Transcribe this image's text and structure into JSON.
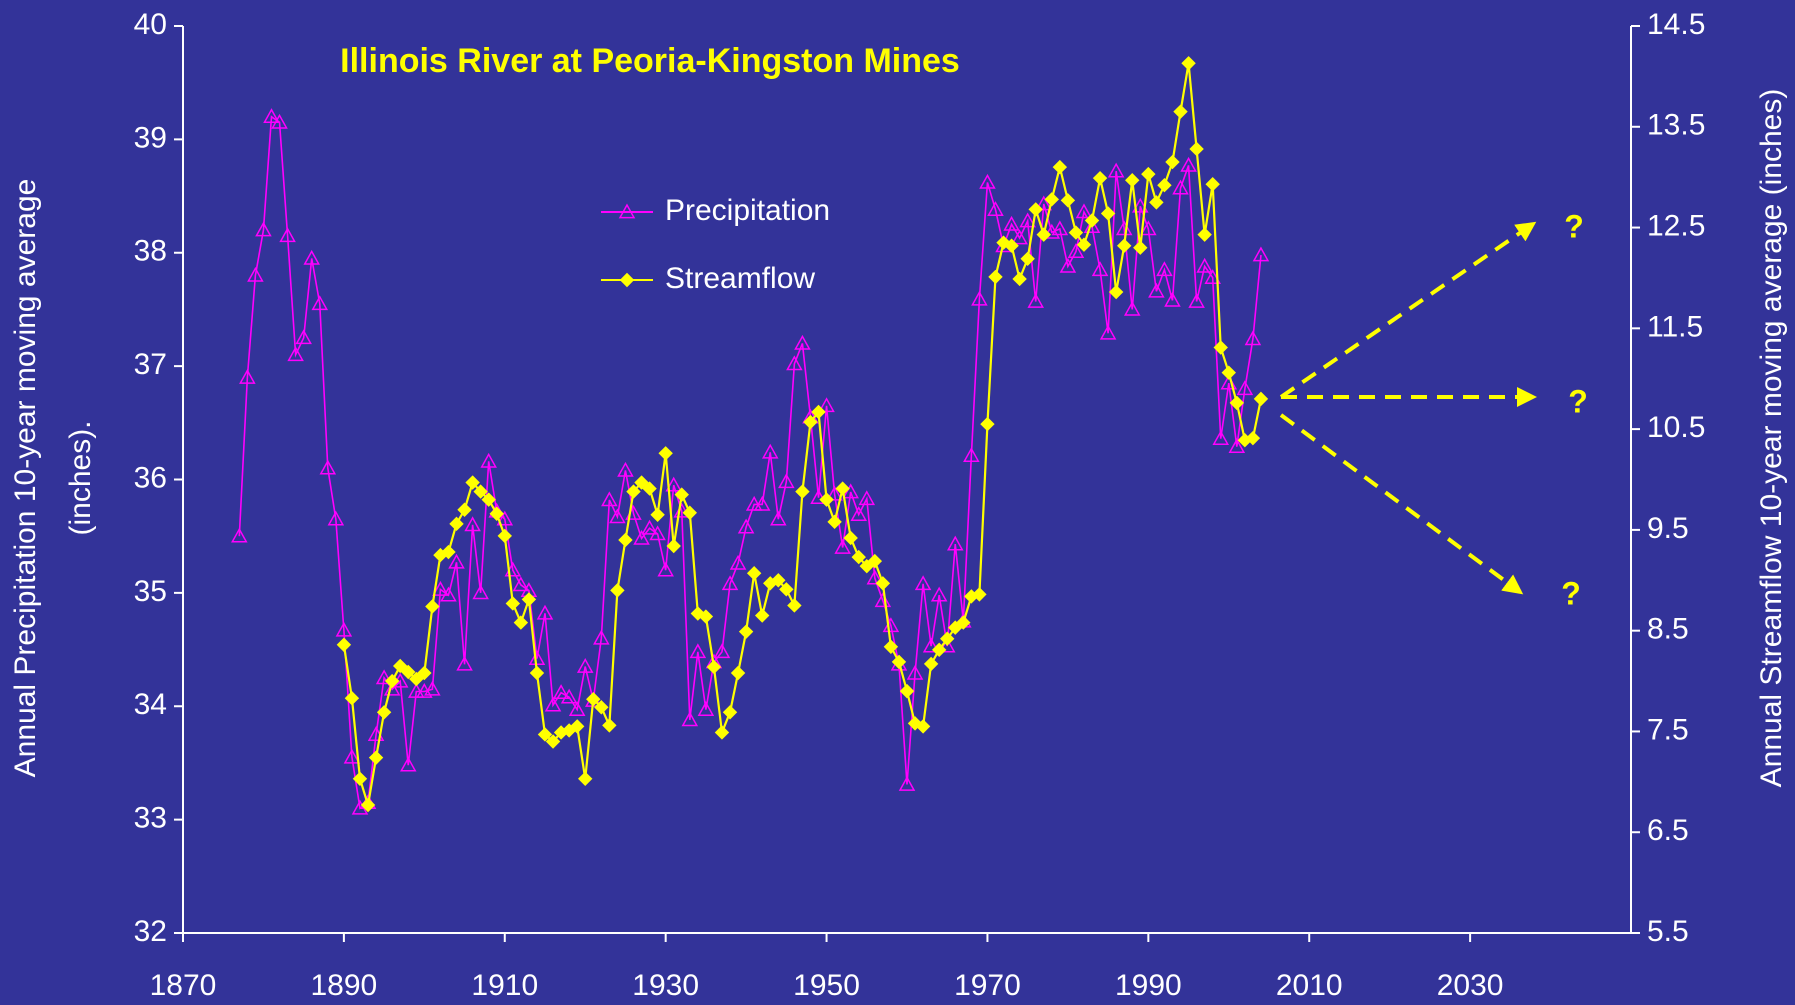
{
  "chart_data": {
    "type": "line",
    "title": "Illinois River at Peoria-Kingston Mines",
    "ylabel": [
      "Annual Precipitation 10-year moving average",
      "(inches)."
    ],
    "y2label": "Annual Streamflow 10-year moving average (inches)",
    "xlim": [
      1870,
      2050
    ],
    "xticks": [
      1870,
      1890,
      1910,
      1930,
      1950,
      1970,
      1990,
      2010,
      2030
    ],
    "ylim": [
      32,
      40
    ],
    "yticks": [
      32,
      33,
      34,
      35,
      36,
      37,
      38,
      39,
      40
    ],
    "y2lim": [
      5.5,
      14.5
    ],
    "y2ticks": [
      5.5,
      6.5,
      7.5,
      8.5,
      9.5,
      10.5,
      11.5,
      12.5,
      13.5,
      14.5
    ],
    "grid": false,
    "legend": "upper center",
    "x": [
      1877,
      1878,
      1879,
      1880,
      1881,
      1882,
      1883,
      1884,
      1885,
      1886,
      1887,
      1888,
      1889,
      1890,
      1891,
      1892,
      1893,
      1894,
      1895,
      1896,
      1897,
      1898,
      1899,
      1900,
      1901,
      1902,
      1903,
      1904,
      1905,
      1906,
      1907,
      1908,
      1909,
      1910,
      1911,
      1912,
      1913,
      1914,
      1915,
      1916,
      1917,
      1918,
      1919,
      1920,
      1921,
      1922,
      1923,
      1924,
      1925,
      1926,
      1927,
      1928,
      1929,
      1930,
      1931,
      1932,
      1933,
      1934,
      1935,
      1936,
      1937,
      1938,
      1939,
      1940,
      1941,
      1942,
      1943,
      1944,
      1945,
      1946,
      1947,
      1948,
      1949,
      1950,
      1951,
      1952,
      1953,
      1954,
      1955,
      1956,
      1957,
      1958,
      1959,
      1960,
      1961,
      1962,
      1963,
      1964,
      1965,
      1966,
      1967,
      1968,
      1969,
      1970,
      1971,
      1972,
      1973,
      1974,
      1975,
      1976,
      1977,
      1978,
      1979,
      1980,
      1981,
      1982,
      1983,
      1984,
      1985,
      1986,
      1987,
      1988,
      1989,
      1990,
      1991,
      1992,
      1993,
      1994,
      1995,
      1996,
      1997,
      1998,
      1999,
      2000,
      2001,
      2002,
      2003,
      2004
    ],
    "series": [
      {
        "name": "Precipitation",
        "color": "#ff00ff",
        "marker": "triangle",
        "values": [
          35.5,
          36.9,
          37.8,
          38.2,
          39.2,
          39.15,
          38.15,
          37.1,
          37.25,
          37.95,
          37.55,
          36.1,
          35.65,
          34.67,
          33.55,
          33.1,
          33.15,
          33.75,
          34.25,
          34.15,
          34.22,
          33.48,
          34.13,
          34.13,
          34.15,
          35.03,
          34.98,
          35.27,
          34.37,
          35.6,
          35.0,
          36.16,
          35.72,
          35.65,
          35.2,
          35.07,
          35.02,
          34.42,
          34.82,
          34.01,
          34.12,
          34.08,
          33.97,
          34.35,
          34.05,
          34.6,
          35.82,
          35.67,
          36.08,
          35.7,
          35.48,
          35.57,
          35.52,
          35.2,
          35.95,
          35.72,
          33.88,
          34.48,
          33.97,
          34.39,
          34.48,
          35.08,
          35.26,
          35.58,
          35.78,
          35.78,
          36.24,
          35.65,
          35.98,
          37.02,
          37.2,
          36.55,
          35.84,
          36.65,
          35.87,
          35.4,
          35.89,
          35.69,
          35.83,
          35.13,
          34.93,
          34.71,
          34.37,
          33.31,
          34.29,
          35.08,
          34.53,
          34.98,
          34.53,
          35.43,
          34.75,
          36.21,
          37.59,
          38.62,
          38.38,
          38.06,
          38.25,
          38.13,
          38.28,
          37.57,
          38.43,
          38.18,
          38.21,
          37.88,
          38.01,
          38.36,
          38.23,
          37.85,
          37.29,
          38.72,
          38.21,
          37.5,
          38.41,
          38.21,
          37.66,
          37.85,
          37.58,
          38.57,
          38.77,
          37.57,
          37.88,
          37.78,
          36.36,
          36.85,
          36.29,
          36.8,
          37.24,
          37.98
        ]
      },
      {
        "name": "Streamflow",
        "color": "#ffff00",
        "marker": "diamond",
        "axis": "y2",
        "values": [
          null,
          null,
          null,
          null,
          null,
          null,
          null,
          null,
          null,
          null,
          null,
          null,
          null,
          8.36,
          7.83,
          7.03,
          6.77,
          7.24,
          7.69,
          8.0,
          8.15,
          8.09,
          8.02,
          8.08,
          8.74,
          9.25,
          9.28,
          9.56,
          9.7,
          9.97,
          9.88,
          9.8,
          9.66,
          9.44,
          8.77,
          8.58,
          8.81,
          8.08,
          7.47,
          7.4,
          7.49,
          7.51,
          7.55,
          7.03,
          7.82,
          7.74,
          7.56,
          8.9,
          9.4,
          9.88,
          9.97,
          9.91,
          9.65,
          10.26,
          9.34,
          9.85,
          9.67,
          8.67,
          8.64,
          8.14,
          7.49,
          7.69,
          8.08,
          8.49,
          9.07,
          8.65,
          8.97,
          9.0,
          8.91,
          8.75,
          9.88,
          10.57,
          10.67,
          9.8,
          9.58,
          9.91,
          9.42,
          9.23,
          9.14,
          9.19,
          8.97,
          8.34,
          8.19,
          7.9,
          7.58,
          7.55,
          8.17,
          8.31,
          8.42,
          8.53,
          8.58,
          8.84,
          8.86,
          10.55,
          12.01,
          12.35,
          12.32,
          11.99,
          12.19,
          12.68,
          12.43,
          12.78,
          13.1,
          12.77,
          12.45,
          12.33,
          12.57,
          12.99,
          12.64,
          11.86,
          12.32,
          12.97,
          12.3,
          13.03,
          12.75,
          12.92,
          13.15,
          13.65,
          14.13,
          13.28,
          12.43,
          12.93,
          11.31,
          11.06,
          10.76,
          10.39,
          10.41,
          10.8
        ]
      }
    ],
    "annotations": [
      {
        "text": "?"
      },
      {
        "text": "?"
      },
      {
        "text": "?"
      }
    ]
  }
}
